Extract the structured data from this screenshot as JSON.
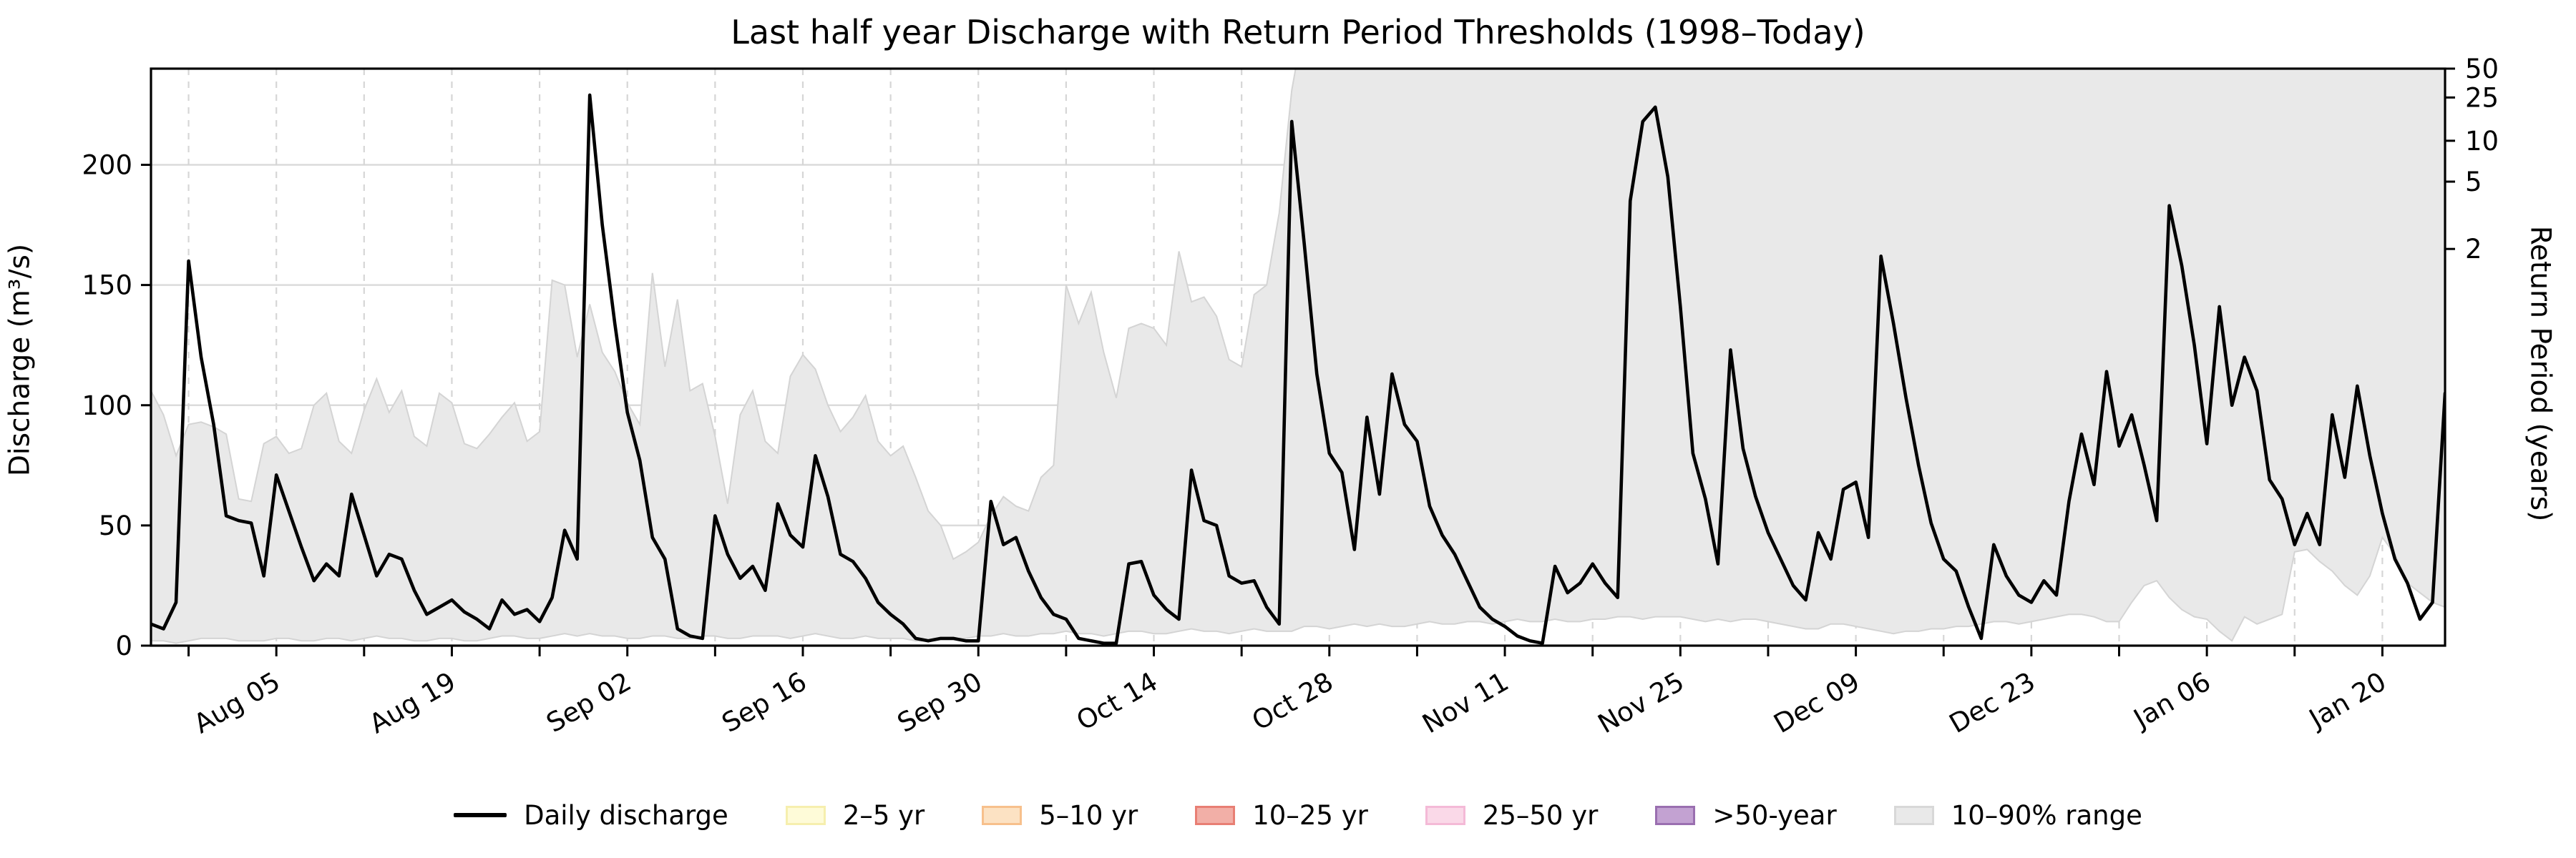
{
  "title": "Last half year Discharge with Return Period Thresholds (1998–Today)",
  "axes": {
    "left": {
      "label": "Discharge (m³/s)",
      "ticks": [
        0,
        50,
        100,
        150,
        200
      ],
      "ymax": 240
    },
    "right": {
      "label": "Return Period (years)",
      "ticks": [
        {
          "label": "50",
          "discharge": 240
        },
        {
          "label": "25",
          "discharge": 228
        },
        {
          "label": "10",
          "discharge": 210
        },
        {
          "label": "5",
          "discharge": 193
        },
        {
          "label": "2",
          "discharge": 165
        }
      ]
    },
    "x": {
      "ticks": [
        {
          "day": 10,
          "label": "Aug 05"
        },
        {
          "day": 24,
          "label": "Aug 19"
        },
        {
          "day": 38,
          "label": "Sep 02"
        },
        {
          "day": 52,
          "label": "Sep 16"
        },
        {
          "day": 66,
          "label": "Sep 30"
        },
        {
          "day": 80,
          "label": "Oct 14"
        },
        {
          "day": 94,
          "label": "Oct 28"
        },
        {
          "day": 108,
          "label": "Nov 11"
        },
        {
          "day": 122,
          "label": "Nov 25"
        },
        {
          "day": 136,
          "label": "Dec 09"
        },
        {
          "day": 150,
          "label": "Dec 23"
        },
        {
          "day": 164,
          "label": "Jan 06"
        },
        {
          "day": 178,
          "label": "Jan 20"
        }
      ],
      "minor_start_day": 3,
      "minor_step_days": 7
    }
  },
  "legend": [
    {
      "label": "Daily discharge",
      "type": "line",
      "color": "#000000"
    },
    {
      "label": "2–5 yr",
      "type": "patch",
      "fill": "#FEFBD8",
      "border": "#F6EFAE"
    },
    {
      "label": "5–10 yr",
      "type": "patch",
      "fill": "#FCE2C3",
      "border": "#F7C08C"
    },
    {
      "label": "10–25 yr",
      "type": "patch",
      "fill": "#F2AFA7",
      "border": "#E87F74"
    },
    {
      "label": "25–50 yr",
      "type": "patch",
      "fill": "#FAD9E8",
      "border": "#F4BAD7"
    },
    {
      "label": ">50-year",
      "type": "patch",
      "fill": "#C3A2D2",
      "border": "#9A6FB0"
    },
    {
      "label": "10–90% range",
      "type": "patch",
      "fill": "#E9E9E9",
      "border": "#D8D8D8"
    }
  ],
  "colors": {
    "line": "#000000",
    "band_fill": "#E9E9E9",
    "band_edge": "#D4D4D4",
    "grid_h": "#DBDBDB",
    "grid_v": "#D6D6D6",
    "spine": "#000000",
    "background": "#FFFFFF"
  },
  "chart_data": {
    "type": "line",
    "title": "Last half year Discharge with Return Period Thresholds (1998–Today)",
    "xlabel": "",
    "ylabel": "Discharge (m³/s)",
    "ylabel_right": "Return Period (years)",
    "ylim": [
      0,
      240
    ],
    "x": {
      "start": "Jul 26",
      "end": "Jan 25",
      "cadence": "daily",
      "n_points": 184
    },
    "grid": true,
    "legend_position": "bottom-center",
    "return_period_thresholds": {
      "2yr": 165,
      "5yr": 193,
      "10yr": 210,
      "25yr": 228,
      "50yr": 240
    },
    "series": [
      {
        "name": "Daily discharge",
        "values": [
          9,
          7,
          18,
          160,
          120,
          92,
          54,
          52,
          51,
          29,
          71,
          56,
          41,
          27,
          34,
          29,
          63,
          46,
          29,
          38,
          36,
          23,
          13,
          16,
          19,
          14,
          11,
          7,
          19,
          13,
          15,
          10,
          20,
          48,
          36,
          229,
          175,
          134,
          97,
          77,
          45,
          36,
          7,
          4,
          3,
          54,
          38,
          28,
          33,
          23,
          59,
          46,
          41,
          79,
          62,
          38,
          35,
          28,
          18,
          13,
          9,
          3,
          2,
          3,
          3,
          2,
          2,
          60,
          42,
          45,
          31,
          20,
          13,
          11,
          3,
          2,
          1,
          1,
          34,
          35,
          21,
          15,
          11,
          73,
          52,
          50,
          29,
          26,
          27,
          16,
          9,
          218,
          167,
          113,
          80,
          72,
          40,
          95,
          63,
          113,
          92,
          85,
          58,
          46,
          38,
          27,
          16,
          11,
          8,
          4,
          2,
          1,
          33,
          22,
          26,
          34,
          26,
          20,
          185,
          218,
          224,
          195,
          141,
          80,
          61,
          34,
          123,
          82,
          62,
          47,
          36,
          25,
          19,
          47,
          36,
          65,
          68,
          45,
          162,
          134,
          103,
          75,
          51,
          36,
          31,
          16,
          3,
          42,
          29,
          21,
          18,
          27,
          21,
          60,
          88,
          67,
          114,
          83,
          96,
          75,
          52,
          183,
          158,
          125,
          84,
          141,
          100,
          120,
          106,
          69,
          61,
          42,
          55,
          42,
          96,
          70,
          108,
          79,
          55,
          36,
          26,
          11,
          18,
          105
        ]
      },
      {
        "name": "10–90% range upper",
        "values": [
          106,
          96,
          79,
          92,
          93,
          91,
          88,
          61,
          60,
          84,
          87,
          80,
          82,
          100,
          105,
          85,
          80,
          98,
          111,
          97,
          106,
          87,
          83,
          105,
          101,
          84,
          82,
          88,
          95,
          101,
          85,
          89,
          152,
          150,
          120,
          142,
          122,
          114,
          101,
          92,
          155,
          116,
          144,
          106,
          109,
          87,
          59,
          96,
          106,
          85,
          80,
          112,
          121,
          115,
          100,
          89,
          95,
          104,
          85,
          79,
          83,
          70,
          56,
          50,
          36,
          39,
          43,
          54,
          62,
          58,
          56,
          70,
          75,
          150,
          134,
          147,
          122,
          103,
          132,
          134,
          132,
          125,
          164,
          143,
          145,
          137,
          119,
          116,
          146,
          150,
          180,
          231,
          260,
          300,
          300,
          300,
          300,
          300,
          300,
          300,
          300,
          300,
          300,
          300,
          300,
          300,
          300,
          300,
          300,
          300,
          300,
          300,
          300,
          300,
          300,
          300,
          300,
          300,
          300,
          300,
          300,
          300,
          300,
          300,
          300,
          300,
          300,
          300,
          300,
          300,
          300,
          300,
          300,
          300,
          300,
          300,
          300,
          300,
          300,
          300,
          300,
          300,
          300,
          300,
          300,
          300,
          300,
          300,
          300,
          300,
          300,
          300,
          300,
          300,
          300,
          300,
          300,
          300,
          300,
          300,
          300,
          300,
          300,
          300,
          300,
          300,
          300,
          300,
          300,
          300,
          300,
          300,
          300,
          300,
          300,
          300,
          300,
          300,
          300,
          300,
          300,
          300,
          300,
          300
        ]
      },
      {
        "name": "10–90% range lower",
        "values": [
          2,
          2,
          1,
          2,
          3,
          3,
          3,
          2,
          2,
          2,
          3,
          3,
          2,
          2,
          3,
          3,
          2,
          3,
          4,
          3,
          3,
          2,
          2,
          3,
          3,
          2,
          2,
          3,
          4,
          4,
          3,
          3,
          4,
          5,
          4,
          5,
          4,
          4,
          3,
          3,
          4,
          4,
          3,
          3,
          4,
          4,
          3,
          3,
          4,
          4,
          4,
          3,
          4,
          5,
          4,
          3,
          3,
          4,
          3,
          3,
          3,
          2,
          2,
          3,
          3,
          3,
          4,
          4,
          5,
          4,
          4,
          5,
          5,
          6,
          5,
          5,
          4,
          5,
          6,
          6,
          5,
          5,
          6,
          7,
          6,
          6,
          5,
          6,
          7,
          6,
          6,
          6,
          8,
          8,
          7,
          8,
          9,
          8,
          9,
          8,
          8,
          9,
          10,
          9,
          9,
          10,
          10,
          9,
          10,
          11,
          10,
          10,
          11,
          10,
          10,
          11,
          11,
          12,
          12,
          11,
          12,
          12,
          12,
          11,
          10,
          11,
          10,
          11,
          11,
          10,
          9,
          8,
          7,
          7,
          9,
          9,
          8,
          7,
          6,
          5,
          6,
          6,
          7,
          7,
          8,
          8,
          9,
          10,
          10,
          9,
          10,
          11,
          12,
          13,
          13,
          12,
          10,
          10,
          18,
          25,
          27,
          20,
          15,
          12,
          11,
          6,
          2,
          12,
          9,
          11,
          13,
          39,
          40,
          35,
          31,
          25,
          21,
          29,
          45,
          38,
          26,
          22,
          18,
          16
        ]
      }
    ]
  }
}
